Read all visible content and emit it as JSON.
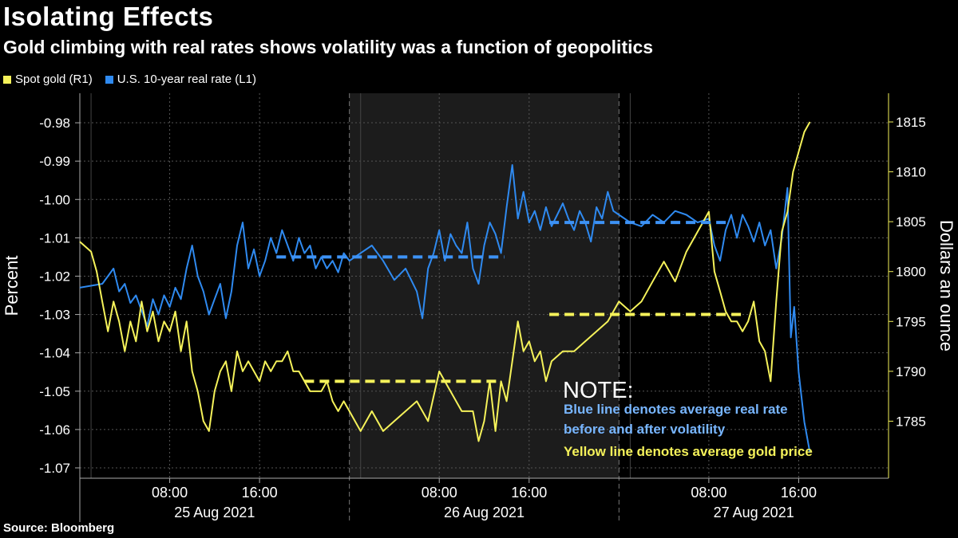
{
  "header": {
    "title": "Isolating Effects",
    "subtitle": "Gold climbing with real rates shows volatility was a function of geopolitics"
  },
  "legend": [
    {
      "label": "Spot gold (R1)",
      "color": "#f5f25a"
    },
    {
      "label": "U.S. 10-year real rate (L1)",
      "color": "#2f8af0"
    }
  ],
  "note": {
    "title": "NOTE:",
    "blue_line_1": "Blue line denotes average real rate",
    "blue_line_2": "before and after volatility",
    "yellow_line": "Yellow line denotes average gold price"
  },
  "source": "Source: Bloomberg",
  "chart_data": {
    "type": "line",
    "x_unit": "hours since 25 Aug 2021 00:00",
    "xlim": [
      0,
      72
    ],
    "x_ticks": [
      {
        "x": 8,
        "label": "08:00"
      },
      {
        "x": 16,
        "label": "16:00"
      },
      {
        "x": 32,
        "label": "08:00"
      },
      {
        "x": 40,
        "label": "16:00"
      },
      {
        "x": 56,
        "label": "08:00"
      },
      {
        "x": 64,
        "label": "16:00"
      }
    ],
    "day_labels": [
      {
        "x": 12,
        "label": "25 Aug 2021"
      },
      {
        "x": 36,
        "label": "26 Aug 2021"
      },
      {
        "x": 60,
        "label": "27 Aug 2021"
      }
    ],
    "day_boundaries": [
      24,
      48
    ],
    "shaded_region": [
      24,
      48
    ],
    "left_axis": {
      "label": "Percent",
      "ylim": [
        -1.07,
        -0.975
      ],
      "ticks": [
        "-0.98",
        "-0.99",
        "-1.00",
        "-1.01",
        "-1.02",
        "-1.03",
        "-1.04",
        "-1.05",
        "-1.06",
        "-1.07"
      ]
    },
    "right_axis": {
      "label": "Dollars an ounce",
      "ylim": [
        1780,
        1818
      ],
      "ticks": [
        "1815",
        "1810",
        "1805",
        "1800",
        "1795",
        "1790",
        "1785"
      ]
    },
    "series": [
      {
        "name": "U.S. 10-year real rate (L1)",
        "axis": "left",
        "color": "#2f8af0",
        "x": [
          0,
          2,
          2.5,
          3,
          3.5,
          4,
          4.5,
          5,
          5.5,
          6,
          6.5,
          7,
          7.5,
          8,
          8.5,
          9,
          9.5,
          10,
          10.5,
          11,
          11.5,
          12,
          12.5,
          13,
          13.5,
          14,
          14.5,
          15,
          15.5,
          16,
          16.5,
          17,
          17.5,
          18,
          18.5,
          19,
          19.5,
          20,
          20.5,
          21,
          21.5,
          22,
          22.5,
          23,
          23.5,
          24,
          25,
          26,
          27,
          28,
          29,
          30,
          30.5,
          31,
          31.5,
          32,
          32.5,
          33,
          33.5,
          34,
          34.5,
          35,
          35.5,
          36,
          36.5,
          37,
          37.5,
          38,
          38.5,
          39,
          39.5,
          40,
          40.5,
          41,
          41.5,
          42,
          42.5,
          43,
          43.5,
          44,
          44.5,
          45,
          45.5,
          46,
          46.5,
          47,
          47.5,
          48,
          49,
          50,
          51,
          52,
          53,
          54,
          55,
          56,
          56.5,
          57,
          57.5,
          58,
          58.5,
          59,
          59.5,
          60,
          60.5,
          61,
          61.5,
          62,
          62.5,
          63,
          63.3,
          63.6,
          64,
          64.5,
          65
        ],
        "y": [
          -1.023,
          -1.022,
          -1.02,
          -1.018,
          -1.024,
          -1.022,
          -1.027,
          -1.025,
          -1.029,
          -1.033,
          -1.026,
          -1.03,
          -1.025,
          -1.028,
          -1.023,
          -1.026,
          -1.018,
          -1.012,
          -1.02,
          -1.024,
          -1.03,
          -1.026,
          -1.022,
          -1.031,
          -1.024,
          -1.012,
          -1.006,
          -1.018,
          -1.013,
          -1.02,
          -1.016,
          -1.01,
          -1.014,
          -1.008,
          -1.012,
          -1.016,
          -1.01,
          -1.014,
          -1.012,
          -1.018,
          -1.015,
          -1.018,
          -1.016,
          -1.019,
          -1.014,
          -1.016,
          -1.014,
          -1.012,
          -1.016,
          -1.021,
          -1.018,
          -1.024,
          -1.031,
          -1.018,
          -1.014,
          -1.008,
          -1.016,
          -1.009,
          -1.012,
          -1.014,
          -1.006,
          -1.018,
          -1.022,
          -1.012,
          -1.006,
          -1.009,
          -1.014,
          -1.002,
          -0.991,
          -1.005,
          -0.998,
          -1.006,
          -1.003,
          -1.008,
          -1.002,
          -1.007,
          -1.004,
          -1.001,
          -1.005,
          -1.008,
          -1.003,
          -1.006,
          -1.011,
          -1.002,
          -1.005,
          -0.998,
          -1.003,
          -1.004,
          -1.006,
          -1.007,
          -1.004,
          -1.006,
          -1.003,
          -1.004,
          -1.006,
          -1.005,
          -1.012,
          -1.016,
          -1.008,
          -1.004,
          -1.01,
          -1.004,
          -1.007,
          -1.011,
          -1.006,
          -1.012,
          -1.008,
          -1.018,
          -1.01,
          -0.997,
          -1.036,
          -1.028,
          -1.045,
          -1.058,
          -1.066
        ],
        "mean_segments": [
          {
            "x0": 17.5,
            "x1": 37.8,
            "y": -1.015
          },
          {
            "x0": 41.8,
            "x1": 58,
            "y": -1.006
          }
        ]
      },
      {
        "name": "Spot gold (R1)",
        "axis": "right",
        "color": "#f5f25a",
        "x": [
          0,
          1,
          1.5,
          2,
          2.5,
          3,
          3.5,
          4,
          4.5,
          5,
          5.5,
          6,
          6.5,
          7,
          7.5,
          8,
          8.5,
          9,
          9.5,
          10,
          10.5,
          11,
          11.5,
          12,
          12.5,
          13,
          13.5,
          14,
          14.5,
          15,
          15.5,
          16,
          16.5,
          17,
          17.5,
          18,
          18.5,
          19,
          19.5,
          20,
          20.5,
          21,
          21.5,
          22,
          22.5,
          23,
          23.5,
          24,
          25,
          26,
          27,
          28,
          29,
          30,
          31,
          32,
          33,
          34,
          35,
          35.5,
          36,
          36.5,
          37,
          37.5,
          38,
          38.5,
          39,
          39.5,
          40,
          40.5,
          41,
          41.5,
          42,
          43,
          44,
          45,
          46,
          47,
          48,
          49,
          50,
          51,
          52,
          53,
          54,
          55,
          56,
          56.5,
          57,
          57.5,
          58,
          58.5,
          59,
          59.5,
          60,
          60.5,
          61,
          61.5,
          62,
          62.5,
          63,
          63.5,
          64,
          64.5,
          65
        ],
        "y": [
          1803,
          1802,
          1800,
          1797,
          1794,
          1797,
          1795,
          1792,
          1795,
          1793,
          1797,
          1794,
          1796,
          1793,
          1795,
          1794,
          1796,
          1792,
          1795,
          1790,
          1788,
          1785,
          1784,
          1788,
          1790,
          1791,
          1788,
          1792,
          1790,
          1791,
          1790,
          1789,
          1791,
          1790,
          1791,
          1791,
          1792,
          1790,
          1790,
          1789,
          1788,
          1788,
          1788,
          1789,
          1787,
          1786,
          1787,
          1786,
          1784,
          1786,
          1784,
          1785,
          1786,
          1787,
          1785,
          1790,
          1788,
          1786,
          1786,
          1783,
          1785,
          1789,
          1784,
          1789,
          1787,
          1791,
          1795,
          1792,
          1793,
          1791,
          1792,
          1789,
          1791,
          1792,
          1792,
          1793,
          1794,
          1795,
          1797,
          1796,
          1797,
          1799,
          1801,
          1799,
          1802,
          1804,
          1806,
          1800,
          1798,
          1796,
          1795,
          1795,
          1794,
          1795,
          1797,
          1793,
          1792,
          1789,
          1797,
          1804,
          1806,
          1810,
          1812,
          1814,
          1815
        ],
        "mean_segments": [
          {
            "x0": 20,
            "x1": 37.5,
            "y": 1789
          },
          {
            "x0": 41.8,
            "x1": 59,
            "y": 1795.7
          }
        ]
      }
    ]
  }
}
